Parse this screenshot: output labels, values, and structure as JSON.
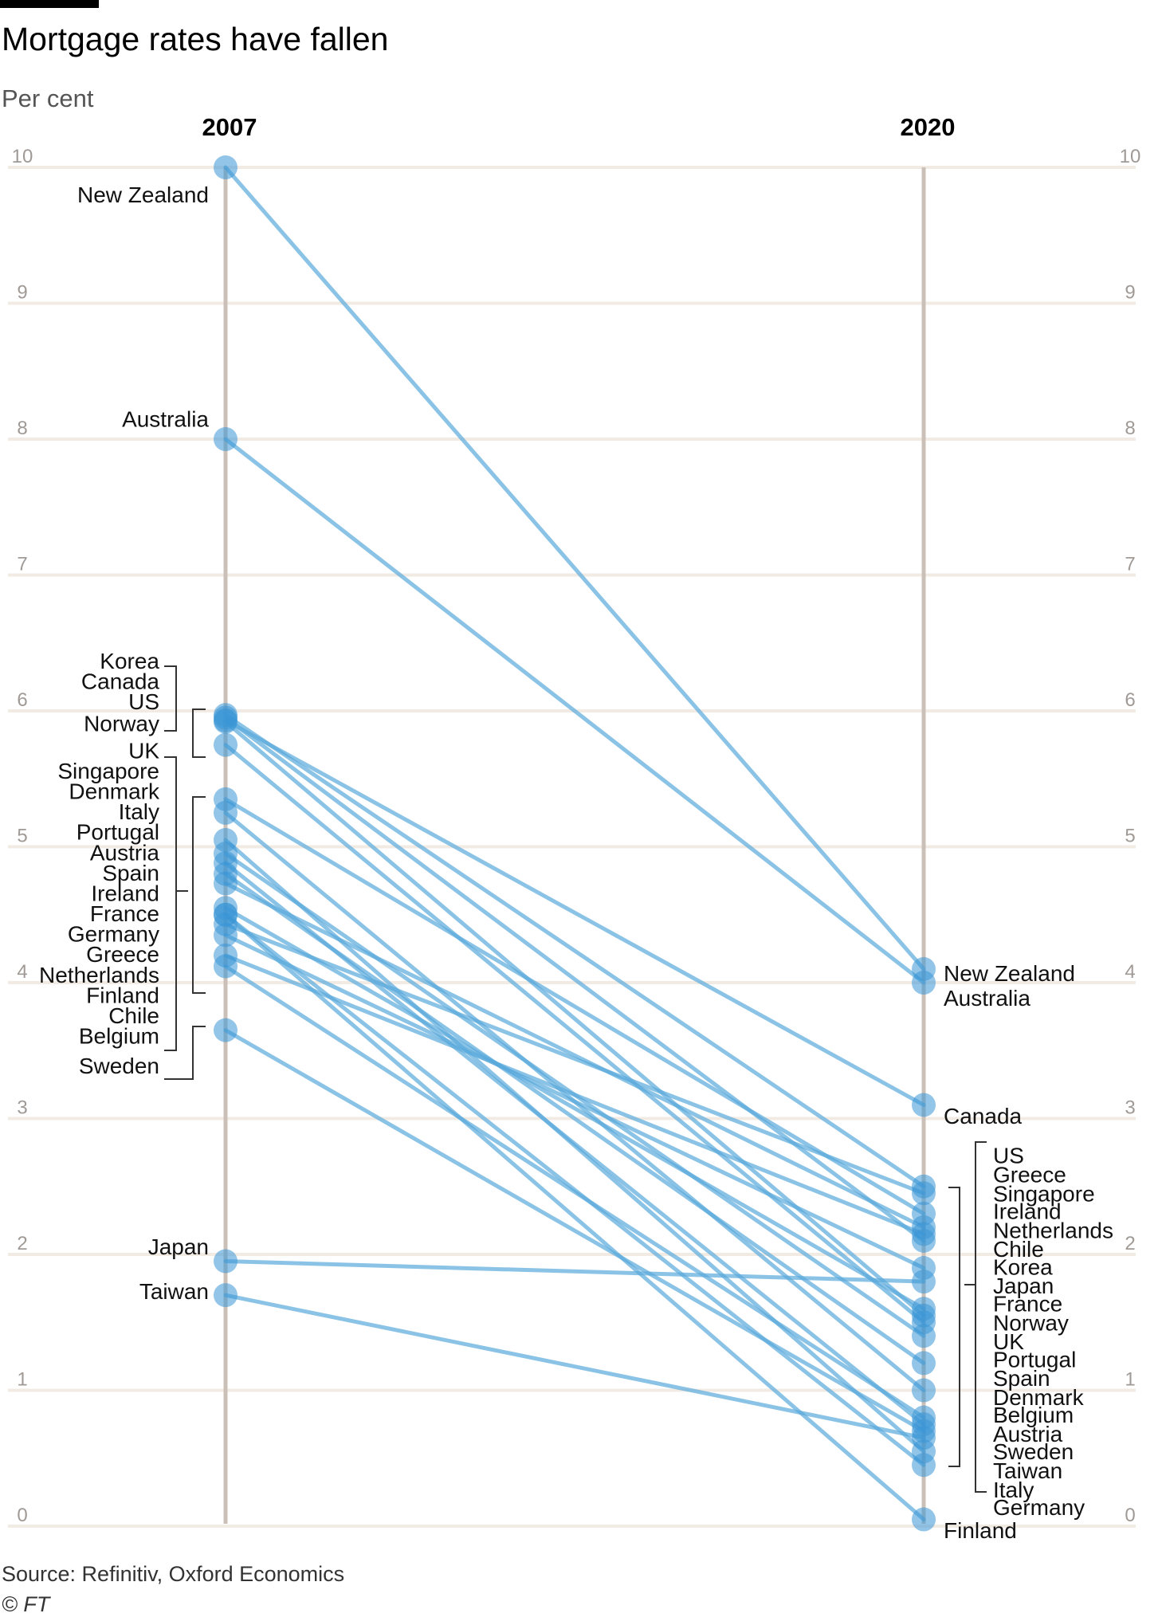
{
  "header": {
    "title": "Mortgage rates have fallen",
    "subtitle": "Per cent"
  },
  "footer": {
    "source": "Source: Refinitiv, Oxford Economics",
    "credit": "© FT"
  },
  "colors": {
    "line": "#5aaadc",
    "point": "#3a96d6",
    "axis": "#cbc0b8",
    "grid": "#f2ebe4",
    "tick": "#a09a96"
  },
  "chart_data": {
    "type": "slope",
    "title": "Mortgage rates have fallen",
    "ylabel": "Per cent",
    "ylim": [
      0,
      10
    ],
    "yticks": [
      0,
      1,
      2,
      3,
      4,
      5,
      6,
      7,
      8,
      9,
      10
    ],
    "grid": true,
    "x": [
      "2007",
      "2020"
    ],
    "series": [
      {
        "name": "New Zealand",
        "values": [
          10.0,
          4.1
        ]
      },
      {
        "name": "Australia",
        "values": [
          8.0,
          4.0
        ]
      },
      {
        "name": "Korea",
        "values": [
          5.95,
          2.1
        ]
      },
      {
        "name": "Canada",
        "values": [
          5.93,
          3.1
        ]
      },
      {
        "name": "US",
        "values": [
          5.97,
          2.5
        ]
      },
      {
        "name": "Norway",
        "values": [
          5.92,
          1.55
        ]
      },
      {
        "name": "UK",
        "values": [
          5.75,
          1.5
        ]
      },
      {
        "name": "Singapore",
        "values": [
          5.35,
          2.3
        ]
      },
      {
        "name": "Denmark",
        "values": [
          5.25,
          1.0
        ]
      },
      {
        "name": "Italy",
        "values": [
          5.05,
          0.55
        ]
      },
      {
        "name": "Portugal",
        "values": [
          4.95,
          1.4
        ]
      },
      {
        "name": "Austria",
        "values": [
          4.88,
          0.75
        ]
      },
      {
        "name": "Spain",
        "values": [
          4.8,
          1.2
        ]
      },
      {
        "name": "Ireland",
        "values": [
          4.73,
          2.2
        ]
      },
      {
        "name": "France",
        "values": [
          4.55,
          1.6
        ]
      },
      {
        "name": "Germany",
        "values": [
          4.5,
          0.45
        ]
      },
      {
        "name": "Greece",
        "values": [
          4.43,
          2.45
        ]
      },
      {
        "name": "Netherlands",
        "values": [
          4.35,
          1.9
        ]
      },
      {
        "name": "Finland",
        "values": [
          4.5,
          0.05
        ]
      },
      {
        "name": "Chile",
        "values": [
          4.2,
          2.15
        ]
      },
      {
        "name": "Belgium",
        "values": [
          4.12,
          0.8
        ]
      },
      {
        "name": "Sweden",
        "values": [
          3.65,
          0.7
        ]
      },
      {
        "name": "Japan",
        "values": [
          1.95,
          1.8
        ]
      },
      {
        "name": "Taiwan",
        "values": [
          1.7,
          0.65
        ]
      }
    ],
    "labels_2007": [
      {
        "text": "New Zealand",
        "value": 9.8,
        "style": "plain"
      },
      {
        "text": "Australia",
        "value": 8.15,
        "style": "plain"
      },
      {
        "text": "Korea",
        "value": 6.37,
        "style": "group"
      },
      {
        "text": "Canada",
        "value": 6.22,
        "style": "group"
      },
      {
        "text": "US",
        "value": 6.07,
        "style": "group"
      },
      {
        "text": "Norway",
        "value": 5.91,
        "style": "group"
      },
      {
        "text": "UK",
        "value": 5.71,
        "style": "group"
      },
      {
        "text": "Singapore",
        "value": 5.56,
        "style": "group"
      },
      {
        "text": "Denmark",
        "value": 5.41,
        "style": "group"
      },
      {
        "text": "Italy",
        "value": 5.26,
        "style": "group"
      },
      {
        "text": "Portugal",
        "value": 5.11,
        "style": "group"
      },
      {
        "text": "Austria",
        "value": 4.96,
        "style": "group"
      },
      {
        "text": "Spain",
        "value": 4.81,
        "style": "group"
      },
      {
        "text": "Ireland",
        "value": 4.66,
        "style": "group"
      },
      {
        "text": "France",
        "value": 4.51,
        "style": "group"
      },
      {
        "text": "Germany",
        "value": 4.36,
        "style": "group"
      },
      {
        "text": "Greece",
        "value": 4.21,
        "style": "group"
      },
      {
        "text": "Netherlands",
        "value": 4.06,
        "style": "group"
      },
      {
        "text": "Finland",
        "value": 3.91,
        "style": "group"
      },
      {
        "text": "Chile",
        "value": 3.76,
        "style": "group"
      },
      {
        "text": "Belgium",
        "value": 3.61,
        "style": "group"
      },
      {
        "text": "Sweden",
        "value": 3.39,
        "style": "group"
      },
      {
        "text": "Japan",
        "value": 2.06,
        "style": "plain"
      },
      {
        "text": "Taiwan",
        "value": 1.73,
        "style": "plain"
      }
    ],
    "labels_2020": [
      {
        "text": "New Zealand",
        "value": 4.07,
        "style": "plain"
      },
      {
        "text": "Australia",
        "value": 3.89,
        "style": "plain"
      },
      {
        "text": "Canada",
        "value": 3.02,
        "style": "plain"
      },
      {
        "text": "US",
        "value": 2.73,
        "style": "group"
      },
      {
        "text": "Greece",
        "value": 2.59,
        "style": "group"
      },
      {
        "text": "Singapore",
        "value": 2.45,
        "style": "group"
      },
      {
        "text": "Ireland",
        "value": 2.32,
        "style": "group"
      },
      {
        "text": "Netherlands",
        "value": 2.18,
        "style": "group"
      },
      {
        "text": "Chile",
        "value": 2.04,
        "style": "group"
      },
      {
        "text": "Korea",
        "value": 1.91,
        "style": "group"
      },
      {
        "text": "Japan",
        "value": 1.77,
        "style": "group"
      },
      {
        "text": "France",
        "value": 1.64,
        "style": "group"
      },
      {
        "text": "Norway",
        "value": 1.5,
        "style": "group"
      },
      {
        "text": "UK",
        "value": 1.36,
        "style": "group"
      },
      {
        "text": "Portugal",
        "value": 1.23,
        "style": "group"
      },
      {
        "text": "Spain",
        "value": 1.09,
        "style": "group"
      },
      {
        "text": "Denmark",
        "value": 0.95,
        "style": "group"
      },
      {
        "text": "Belgium",
        "value": 0.82,
        "style": "group"
      },
      {
        "text": "Austria",
        "value": 0.68,
        "style": "group"
      },
      {
        "text": "Sweden",
        "value": 0.55,
        "style": "group"
      },
      {
        "text": "Taiwan",
        "value": 0.41,
        "style": "group"
      },
      {
        "text": "Italy",
        "value": 0.27,
        "style": "group"
      },
      {
        "text": "Germany",
        "value": 0.14,
        "style": "group"
      },
      {
        "text": "Finland",
        "value": -0.03,
        "style": "plain"
      }
    ]
  }
}
